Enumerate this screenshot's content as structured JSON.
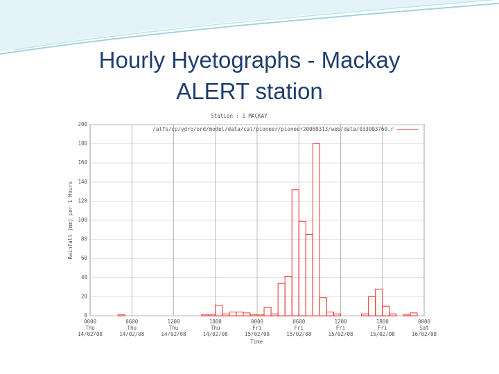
{
  "slide_title": "Hourly Hyetographs - Mackay ALERT station",
  "chart_data": {
    "type": "histogram",
    "title": "Station : 1 MACKAY",
    "ylabel": "Rainfall (mm) per 1 Hours",
    "xlabel": "Time",
    "bins": [
      0,
      1,
      2,
      3,
      4,
      5,
      6,
      7,
      8,
      9,
      10,
      11,
      12,
      13,
      14,
      15,
      16,
      17,
      18,
      19,
      20,
      21,
      22,
      23,
      24,
      25,
      26,
      27,
      28,
      29,
      30,
      31,
      32,
      33,
      34,
      35,
      36,
      37,
      38,
      39,
      40,
      41,
      42,
      43,
      44,
      45,
      46,
      47,
      48
    ],
    "series": [
      {
        "name": "/alfs/cp/ydro/ord/model/data/cal/pioneer/pioneer20080313/web/data/033003760.r",
        "color": "#e8312f",
        "values": [
          0,
          0,
          0,
          0,
          1,
          0,
          0,
          0,
          0,
          0,
          0,
          0,
          0,
          0,
          0,
          0,
          1,
          1,
          11,
          2,
          4,
          4,
          3,
          1,
          1,
          9,
          2,
          34,
          41,
          132,
          99,
          85,
          180,
          19,
          4,
          2,
          0,
          0,
          0,
          2,
          20,
          28,
          10,
          2,
          0,
          1,
          3,
          0
        ]
      }
    ],
    "xlim": [
      0,
      48
    ],
    "ylim": [
      0,
      200
    ],
    "yticks": [
      0,
      20,
      40,
      60,
      80,
      100,
      120,
      140,
      160,
      180,
      200
    ],
    "xticks": [
      {
        "value": 0,
        "label": "0000"
      },
      {
        "value": 6,
        "label": "0600"
      },
      {
        "value": 12,
        "label": "1200"
      },
      {
        "value": 18,
        "label": "1800"
      },
      {
        "value": 24,
        "label": "0000"
      },
      {
        "value": 30,
        "label": "0600"
      },
      {
        "value": 36,
        "label": "1200"
      },
      {
        "value": 42,
        "label": "1800"
      },
      {
        "value": 48,
        "label": "0000"
      }
    ],
    "xtick_days": [
      "Thu",
      "Thu",
      "Thu",
      "Thu",
      "Fri",
      "Fri",
      "Fri",
      "Fri",
      "Sat"
    ],
    "xtick_dates": [
      "14/02/08",
      "14/02/08",
      "14/02/08",
      "14/02/08",
      "15/02/08",
      "15/02/08",
      "15/02/08",
      "15/02/08",
      "16/02/08"
    ],
    "grid": true
  }
}
